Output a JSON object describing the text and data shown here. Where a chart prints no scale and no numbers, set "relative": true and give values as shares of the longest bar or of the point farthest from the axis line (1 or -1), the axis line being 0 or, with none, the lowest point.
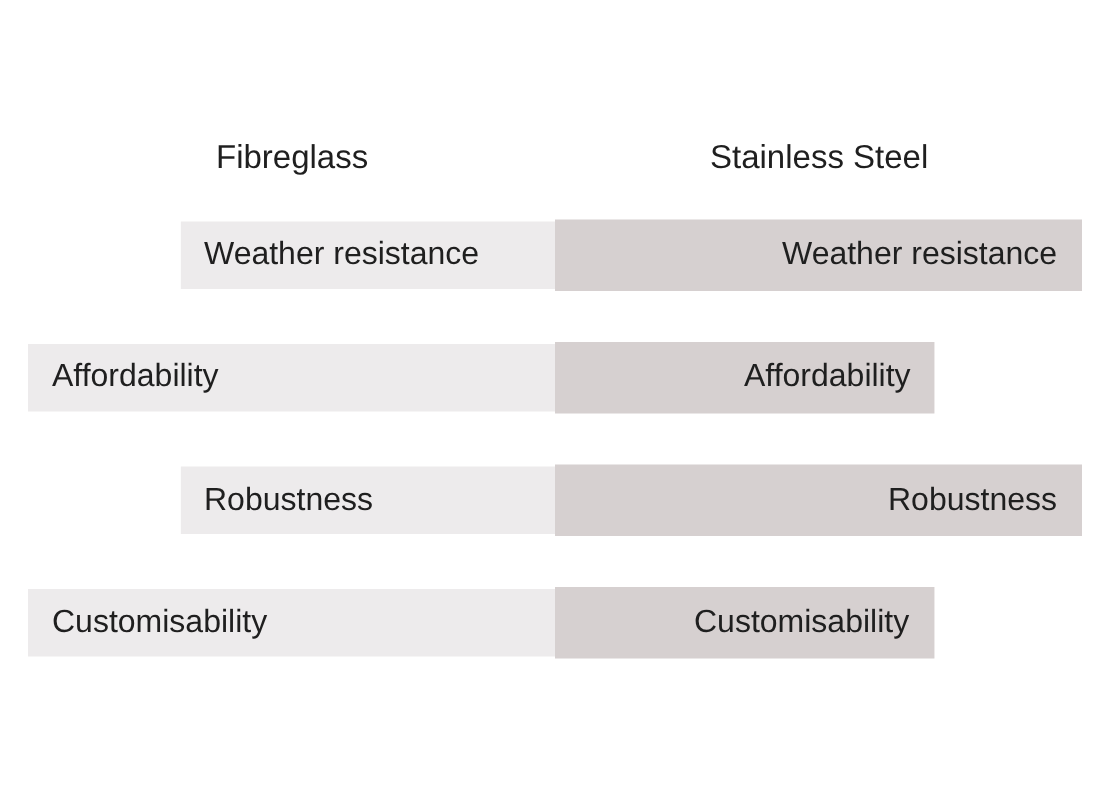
{
  "chart_data": {
    "type": "bar",
    "orientation": "horizontal",
    "relative": true,
    "legend": false,
    "categories": [
      "Weather resistance",
      "Affordability",
      "Robustness",
      "Customisability"
    ],
    "series": [
      {
        "name": "Fibreglass",
        "color": "#edebec",
        "values": [
          -0.71,
          -1,
          -0.71,
          -1
        ]
      },
      {
        "name": "Stainless Steel",
        "color": "#d6d0d0",
        "values": [
          1,
          0.72,
          1,
          0.72
        ]
      }
    ]
  }
}
